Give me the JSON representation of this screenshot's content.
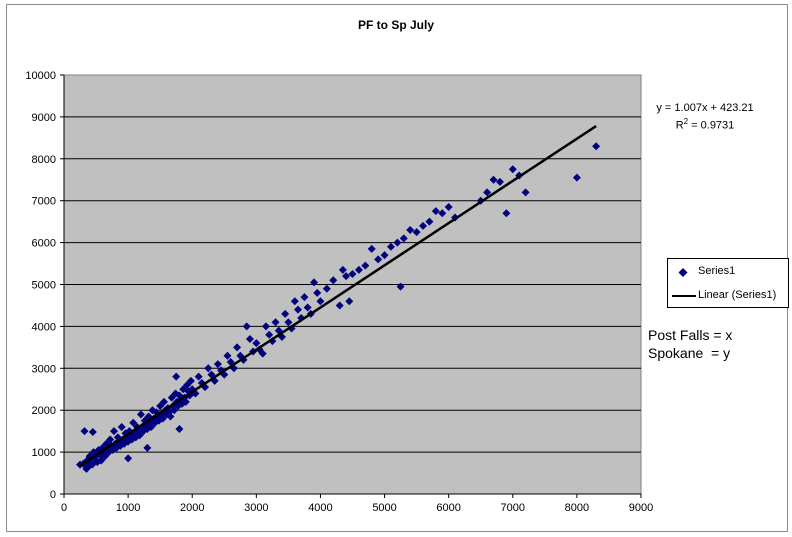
{
  "chart_data": {
    "type": "scatter",
    "title": "PF to Sp July",
    "xlabel": "",
    "ylabel": "",
    "xlim": [
      0,
      9000
    ],
    "ylim": [
      0,
      10000
    ],
    "x_ticks": [
      0,
      1000,
      2000,
      3000,
      4000,
      5000,
      6000,
      7000,
      8000,
      9000
    ],
    "y_ticks": [
      0,
      1000,
      2000,
      3000,
      4000,
      5000,
      6000,
      7000,
      8000,
      9000,
      10000
    ],
    "grid": "horizontal",
    "legend_position": "right",
    "background_color": "#c0c0c0",
    "series": [
      {
        "name": "Series1",
        "color": "#000080",
        "marker": "diamond",
        "points": [
          [
            250,
            700
          ],
          [
            300,
            720
          ],
          [
            320,
            1500
          ],
          [
            350,
            600
          ],
          [
            360,
            800
          ],
          [
            380,
            650
          ],
          [
            400,
            900
          ],
          [
            420,
            750
          ],
          [
            440,
            700
          ],
          [
            450,
            1480
          ],
          [
            460,
            1000
          ],
          [
            480,
            850
          ],
          [
            500,
            900
          ],
          [
            520,
            760
          ],
          [
            540,
            1050
          ],
          [
            560,
            950
          ],
          [
            580,
            800
          ],
          [
            600,
            1100
          ],
          [
            620,
            980
          ],
          [
            640,
            900
          ],
          [
            660,
            1200
          ],
          [
            680,
            1050
          ],
          [
            700,
            1000
          ],
          [
            720,
            1300
          ],
          [
            740,
            1150
          ],
          [
            760,
            1050
          ],
          [
            780,
            1500
          ],
          [
            800,
            1200
          ],
          [
            820,
            1100
          ],
          [
            840,
            1350
          ],
          [
            860,
            1250
          ],
          [
            880,
            1150
          ],
          [
            900,
            1600
          ],
          [
            920,
            1300
          ],
          [
            940,
            1200
          ],
          [
            960,
            1450
          ],
          [
            980,
            1350
          ],
          [
            1000,
            1250
          ],
          [
            1000,
            850
          ],
          [
            1020,
            1500
          ],
          [
            1040,
            1400
          ],
          [
            1060,
            1300
          ],
          [
            1080,
            1700
          ],
          [
            1100,
            1450
          ],
          [
            1120,
            1350
          ],
          [
            1140,
            1600
          ],
          [
            1160,
            1500
          ],
          [
            1180,
            1400
          ],
          [
            1200,
            1900
          ],
          [
            1220,
            1600
          ],
          [
            1240,
            1500
          ],
          [
            1260,
            1750
          ],
          [
            1280,
            1650
          ],
          [
            1300,
            1550
          ],
          [
            1300,
            1100
          ],
          [
            1320,
            1850
          ],
          [
            1340,
            1700
          ],
          [
            1360,
            1600
          ],
          [
            1380,
            2000
          ],
          [
            1400,
            1800
          ],
          [
            1420,
            1700
          ],
          [
            1440,
            1950
          ],
          [
            1460,
            1850
          ],
          [
            1480,
            1750
          ],
          [
            1500,
            2100
          ],
          [
            1520,
            1900
          ],
          [
            1540,
            1800
          ],
          [
            1560,
            2200
          ],
          [
            1580,
            2000
          ],
          [
            1600,
            1900
          ],
          [
            1620,
            2050
          ],
          [
            1640,
            1950
          ],
          [
            1660,
            1850
          ],
          [
            1680,
            2300
          ],
          [
            1700,
            2100
          ],
          [
            1720,
            2000
          ],
          [
            1740,
            2400
          ],
          [
            1750,
            2800
          ],
          [
            1760,
            2200
          ],
          [
            1780,
            2100
          ],
          [
            1800,
            2350
          ],
          [
            1800,
            1550
          ],
          [
            1820,
            2250
          ],
          [
            1840,
            2150
          ],
          [
            1860,
            2500
          ],
          [
            1880,
            2300
          ],
          [
            1900,
            2200
          ],
          [
            1920,
            2600
          ],
          [
            1940,
            2450
          ],
          [
            1960,
            2350
          ],
          [
            1980,
            2700
          ],
          [
            2000,
            2500
          ],
          [
            2050,
            2400
          ],
          [
            2100,
            2800
          ],
          [
            2150,
            2650
          ],
          [
            2200,
            2550
          ],
          [
            2250,
            3000
          ],
          [
            2300,
            2850
          ],
          [
            2350,
            2700
          ],
          [
            2400,
            3100
          ],
          [
            2450,
            2950
          ],
          [
            2500,
            2850
          ],
          [
            2550,
            3300
          ],
          [
            2600,
            3150
          ],
          [
            2650,
            3000
          ],
          [
            2700,
            3500
          ],
          [
            2750,
            3300
          ],
          [
            2800,
            3200
          ],
          [
            2850,
            4000
          ],
          [
            2900,
            3700
          ],
          [
            2950,
            3400
          ],
          [
            3000,
            3600
          ],
          [
            3050,
            3450
          ],
          [
            3100,
            3350
          ],
          [
            3150,
            4000
          ],
          [
            3200,
            3800
          ],
          [
            3250,
            3650
          ],
          [
            3300,
            4100
          ],
          [
            3350,
            3900
          ],
          [
            3400,
            3750
          ],
          [
            3450,
            4300
          ],
          [
            3500,
            4100
          ],
          [
            3550,
            3950
          ],
          [
            3600,
            4600
          ],
          [
            3650,
            4400
          ],
          [
            3700,
            4200
          ],
          [
            3750,
            4700
          ],
          [
            3800,
            4450
          ],
          [
            3850,
            4300
          ],
          [
            3900,
            5050
          ],
          [
            3950,
            4800
          ],
          [
            4000,
            4600
          ],
          [
            4100,
            4900
          ],
          [
            4200,
            5100
          ],
          [
            4300,
            4500
          ],
          [
            4350,
            5350
          ],
          [
            4400,
            5200
          ],
          [
            4450,
            4600
          ],
          [
            4500,
            5250
          ],
          [
            4600,
            5350
          ],
          [
            4700,
            5450
          ],
          [
            4800,
            5850
          ],
          [
            4900,
            5600
          ],
          [
            5000,
            5700
          ],
          [
            5100,
            5900
          ],
          [
            5200,
            6000
          ],
          [
            5250,
            4950
          ],
          [
            5300,
            6100
          ],
          [
            5400,
            6300
          ],
          [
            5500,
            6250
          ],
          [
            5600,
            6400
          ],
          [
            5700,
            6500
          ],
          [
            5800,
            6750
          ],
          [
            5900,
            6700
          ],
          [
            6000,
            6850
          ],
          [
            6100,
            6600
          ],
          [
            6500,
            7000
          ],
          [
            6600,
            7200
          ],
          [
            6700,
            7500
          ],
          [
            6800,
            7450
          ],
          [
            6900,
            6700
          ],
          [
            7000,
            7750
          ],
          [
            7100,
            7600
          ],
          [
            7200,
            7200
          ],
          [
            8000,
            7550
          ],
          [
            8300,
            8300
          ]
        ]
      }
    ],
    "trendline": {
      "name": "Linear (Series1)",
      "color": "#000000",
      "slope": 1.007,
      "intercept": 423.21,
      "x_range": [
        250,
        8300
      ]
    },
    "annotations": {
      "equation": "y = 1.007x + 423.21",
      "r2_prefix": "R",
      "r2_exp": "2",
      "r2_suffix": " = 0.9731",
      "note_lines": [
        "Post Falls = x",
        "Spokane  = y"
      ]
    }
  }
}
